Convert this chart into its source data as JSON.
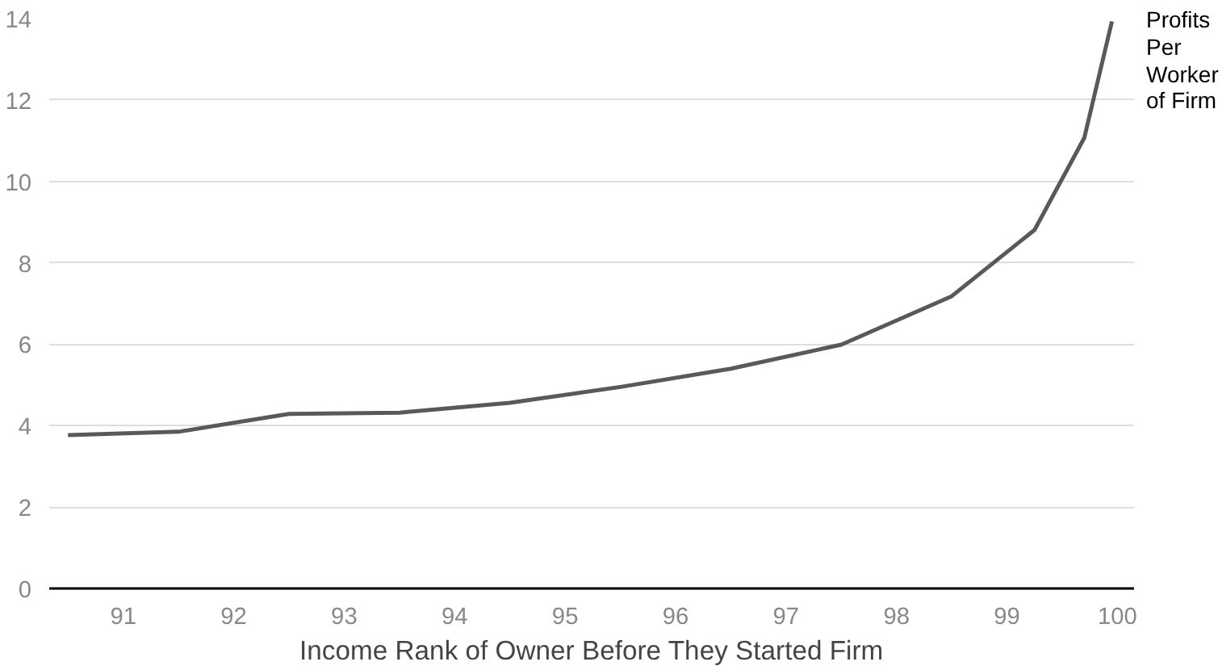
{
  "chart_data": {
    "type": "line",
    "xlabel": "Income Rank of Owner Before They Started Firm",
    "x": [
      90.5,
      91.5,
      92.5,
      93.5,
      94.5,
      95.5,
      96.5,
      97.5,
      98.5,
      99.25,
      99.7,
      99.95
    ],
    "series": [
      {
        "name": "Profits Per Worker of Firm",
        "color": "#595959",
        "values": [
          3.77,
          3.85,
          4.29,
          4.32,
          4.56,
          4.95,
          5.4,
          5.99,
          7.18,
          8.81,
          11.07,
          13.93
        ]
      }
    ],
    "xlim": [
      90.33,
      100.15
    ],
    "xticks": [
      91,
      92,
      93,
      94,
      95,
      96,
      97,
      98,
      99,
      100
    ],
    "ylim": [
      0,
      14
    ],
    "yticks": [
      0,
      2,
      4,
      6,
      8,
      10,
      12,
      14
    ],
    "grid": "y",
    "legend": false,
    "marker": "none",
    "line_style": "solid"
  }
}
